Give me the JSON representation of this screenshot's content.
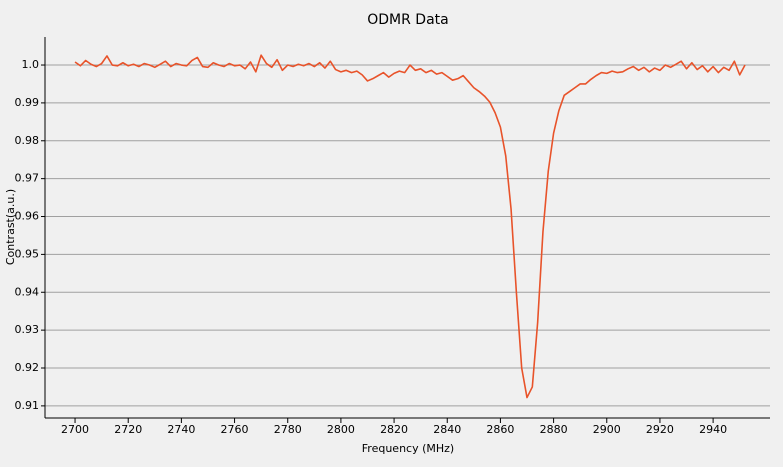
{
  "chart_data": {
    "type": "line",
    "title": "ODMR Data",
    "xlabel": "Frequency (MHz)",
    "ylabel": "Contrast(a.u.)",
    "color": "#e8532a",
    "grid": true,
    "xlim": [
      2688.7,
      2961.4
    ],
    "ylim": [
      0.9068,
      1.0074
    ],
    "xticks": [
      2700,
      2720,
      2740,
      2760,
      2780,
      2800,
      2820,
      2840,
      2860,
      2880,
      2900,
      2920,
      2940
    ],
    "yticks": [
      0.91,
      0.92,
      0.93,
      0.94,
      0.95,
      0.96,
      0.97,
      0.98,
      0.99,
      {
        "value": 1,
        "label": "1.0"
      }
    ],
    "x": [
      2700,
      2702,
      2704,
      2706,
      2708,
      2710,
      2712,
      2714,
      2716,
      2718,
      2720,
      2722,
      2724,
      2726,
      2728,
      2730,
      2732,
      2734,
      2736,
      2738,
      2740,
      2742,
      2744,
      2746,
      2748,
      2750,
      2752,
      2754,
      2756,
      2758,
      2760,
      2762,
      2764,
      2766,
      2768,
      2770,
      2772,
      2774,
      2776,
      2778,
      2780,
      2782,
      2784,
      2786,
      2788,
      2790,
      2792,
      2794,
      2796,
      2798,
      2800,
      2802,
      2804,
      2806,
      2808,
      2810,
      2812,
      2814,
      2816,
      2818,
      2820,
      2822,
      2824,
      2826,
      2828,
      2830,
      2832,
      2834,
      2836,
      2838,
      2840,
      2842,
      2844,
      2846,
      2848,
      2850,
      2852,
      2854,
      2856,
      2858,
      2860,
      2862,
      2864,
      2866,
      2868,
      2870,
      2872,
      2874,
      2876,
      2878,
      2880,
      2882,
      2884,
      2886,
      2888,
      2890,
      2892,
      2894,
      2896,
      2898,
      2900,
      2902,
      2904,
      2906,
      2908,
      2910,
      2912,
      2914,
      2916,
      2918,
      2920,
      2922,
      2924,
      2926,
      2928,
      2930,
      2932,
      2934,
      2936,
      2938,
      2940,
      2942,
      2944,
      2946,
      2948,
      2950,
      2952
    ],
    "values": [
      1.0008,
      0.9998,
      1.0012,
      1.0002,
      0.9996,
      1.0004,
      1.0024,
      1.0,
      0.9998,
      1.0006,
      0.9998,
      1.0002,
      0.9996,
      1.0004,
      1.0,
      0.9994,
      1.0002,
      1.001,
      0.9996,
      1.0004,
      1.0,
      0.9998,
      1.0012,
      1.002,
      0.9996,
      0.9994,
      1.0006,
      1.0,
      0.9996,
      1.0004,
      0.9998,
      1.0,
      0.999,
      1.0008,
      0.9982,
      1.0026,
      1.0004,
      0.9994,
      1.0014,
      0.9986,
      1.0,
      0.9996,
      1.0002,
      0.9998,
      1.0004,
      0.9996,
      1.0006,
      0.9992,
      1.001,
      0.9988,
      0.9982,
      0.9986,
      0.998,
      0.9984,
      0.9974,
      0.9958,
      0.9964,
      0.9972,
      0.998,
      0.9968,
      0.9978,
      0.9984,
      0.998,
      1.0,
      0.9986,
      0.999,
      0.998,
      0.9986,
      0.9976,
      0.998,
      0.997,
      0.996,
      0.9964,
      0.9972,
      0.9956,
      0.994,
      0.993,
      0.9918,
      0.9902,
      0.9874,
      0.9836,
      0.976,
      0.962,
      0.94,
      0.92,
      0.9122,
      0.915,
      0.932,
      0.956,
      0.972,
      0.982,
      0.988,
      0.992,
      0.993,
      0.994,
      0.995,
      0.995,
      0.9962,
      0.9972,
      0.998,
      0.9978,
      0.9984,
      0.998,
      0.9982,
      0.999,
      0.9996,
      0.9986,
      0.9994,
      0.9982,
      0.9992,
      0.9986,
      1.0,
      0.9994,
      1.0002,
      1.001,
      0.999,
      1.0006,
      0.9988,
      0.9998,
      0.9982,
      0.9996,
      0.998,
      0.9994,
      0.9986,
      1.001,
      0.9974,
      1.0
    ]
  }
}
